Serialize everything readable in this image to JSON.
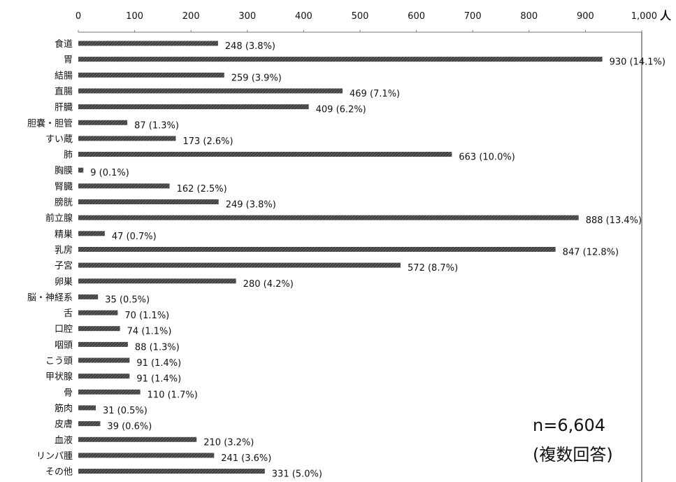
{
  "chart_data": {
    "type": "bar",
    "orientation": "horizontal",
    "title": "",
    "xlabel": "",
    "ylabel": "",
    "unit": "人",
    "xlim": [
      0,
      1000
    ],
    "x_ticks": [
      "0",
      "100",
      "200",
      "300",
      "400",
      "500",
      "600",
      "700",
      "800",
      "900",
      "1,000"
    ],
    "grid": false,
    "bar_color": "#3a3a3a",
    "categories": [
      "食道",
      "胃",
      "結腸",
      "直腸",
      "肝臓",
      "胆嚢・胆管",
      "すい蔵",
      "肺",
      "胸膜",
      "腎臓",
      "膀胱",
      "前立腺",
      "精巣",
      "乳房",
      "子宮",
      "卵巣",
      "脳・神経系",
      "舌",
      "口腔",
      "咽頭",
      "こう頭",
      "甲状腺",
      "骨",
      "筋肉",
      "皮膚",
      "血液",
      "リンパ腫",
      "その他"
    ],
    "values": [
      248,
      930,
      259,
      469,
      409,
      87,
      173,
      663,
      9,
      162,
      249,
      888,
      47,
      847,
      572,
      280,
      35,
      70,
      74,
      88,
      91,
      91,
      110,
      31,
      39,
      210,
      241,
      331
    ],
    "data_labels": [
      "248 (3.8%)",
      "930 (14.1%)",
      "259 (3.9%)",
      "469 (7.1%)",
      "409 (6.2%)",
      "87 (1.3%)",
      "173 (2.6%)",
      "663 (10.0%)",
      "9 (0.1%)",
      "162 (2.5%)",
      "249 (3.8%)",
      "888 (13.4%)",
      "47 (0.7%)",
      "847 (12.8%)",
      "572 (8.7%)",
      "280 (4.2%)",
      "35 (0.5%)",
      "70 (1.1%)",
      "74 (1.1%)",
      "88 (1.3%)",
      "91 (1.4%)",
      "91 (1.4%)",
      "110 (1.7%)",
      "31 (0.5%)",
      "39 (0.6%)",
      "210 (3.2%)",
      "241 (3.6%)",
      "331 (5.0%)"
    ]
  },
  "annotation": {
    "sample_size": "n=6,604",
    "note": "(複数回答)"
  }
}
